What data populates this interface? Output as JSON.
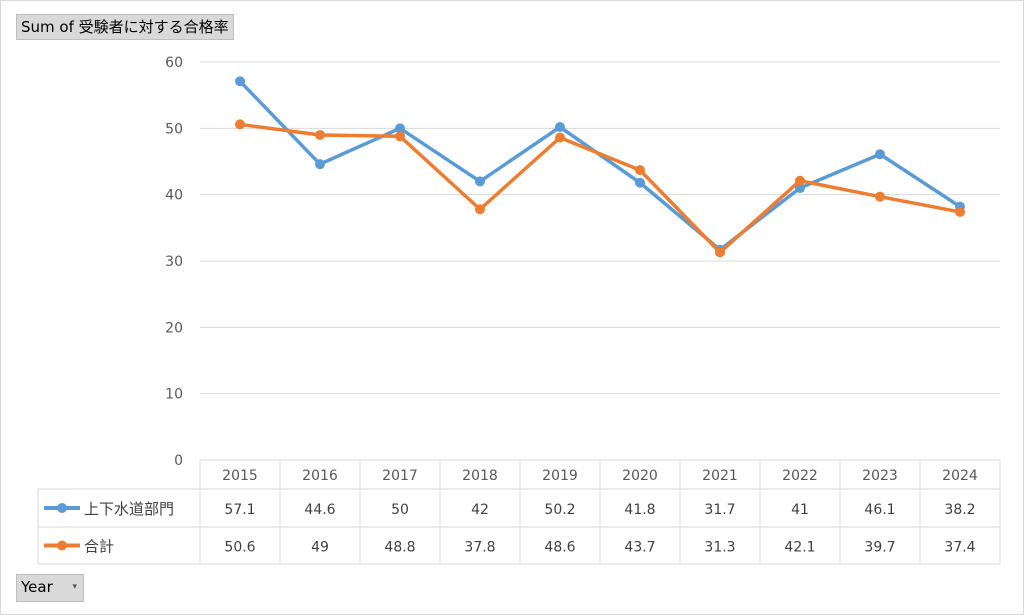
{
  "pivot": {
    "value_field": "Sum of 受験者に対する合格率",
    "row_field": "Year",
    "row_field_dropdown_glyph": "▾"
  },
  "chart_data": {
    "type": "line",
    "categories": [
      "2015",
      "2016",
      "2017",
      "2018",
      "2019",
      "2020",
      "2021",
      "2022",
      "2023",
      "2024"
    ],
    "series": [
      {
        "name": "上下水道部門",
        "values": [
          57.1,
          44.6,
          50,
          42,
          50.2,
          41.8,
          31.7,
          41,
          46.1,
          38.2
        ],
        "color": "#5b9bd5"
      },
      {
        "name": "合計",
        "values": [
          50.6,
          49,
          48.8,
          37.8,
          48.6,
          43.7,
          31.3,
          42.1,
          39.7,
          37.4
        ],
        "color": "#ed7d31"
      }
    ],
    "yticks": [
      0,
      10,
      20,
      30,
      40,
      50,
      60
    ],
    "ylim": [
      0,
      60
    ],
    "grid": true,
    "legend": "data-table",
    "data_table": true
  }
}
